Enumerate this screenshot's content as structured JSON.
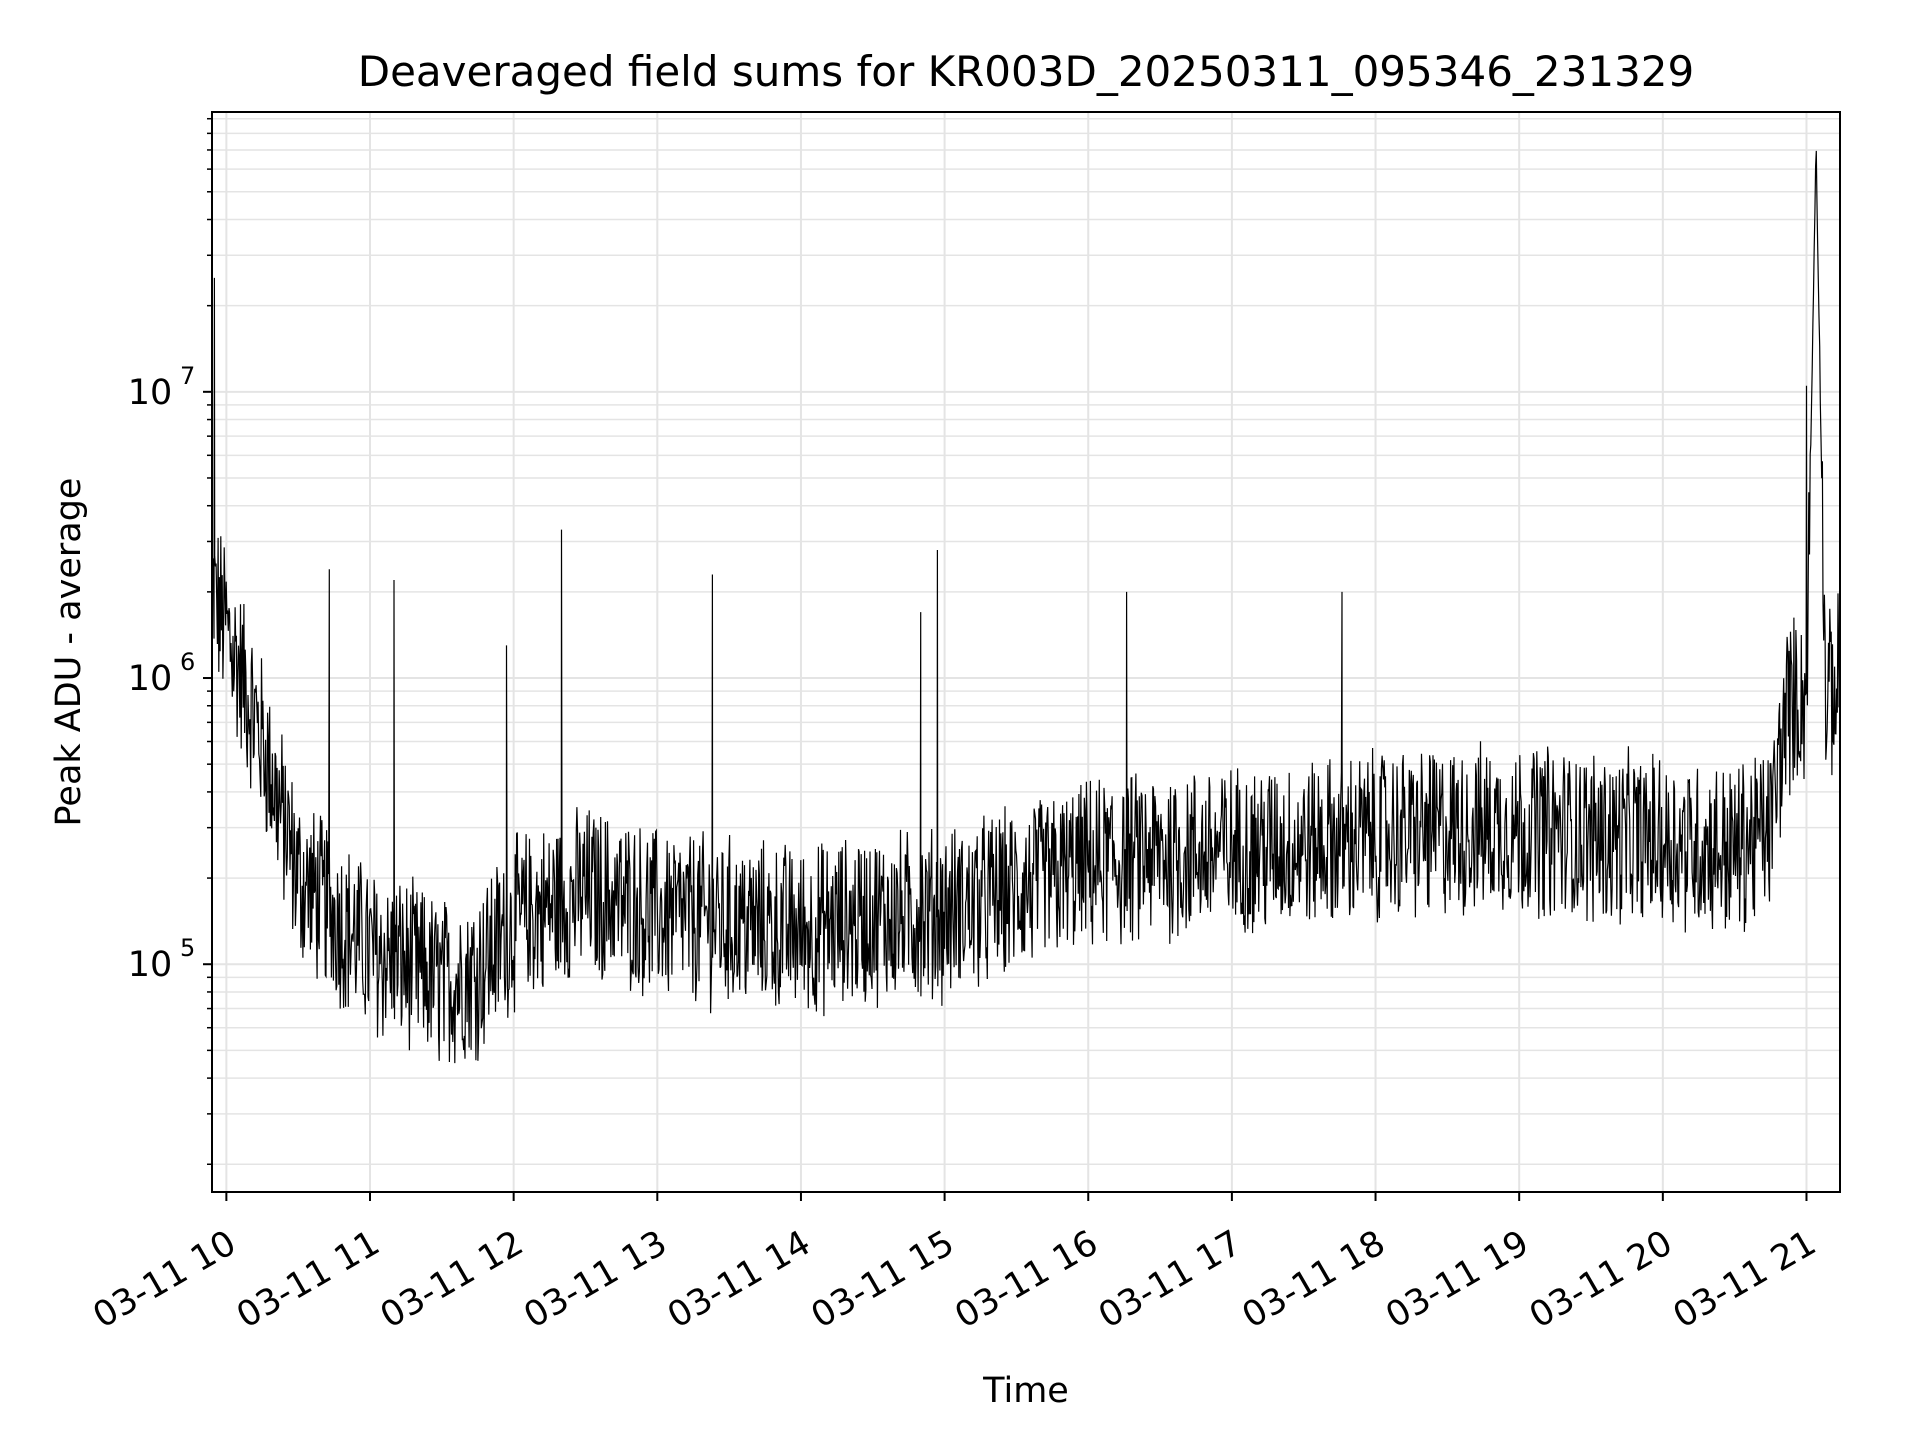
{
  "chart_data": {
    "type": "line",
    "title": "Deaveraged field sums for KR003D_20250311_095346_231329",
    "xlabel": "Time",
    "ylabel": "Peak ADU - average",
    "xscale": "time",
    "yscale": "log",
    "xlim": [
      "2025-03-11T09:54",
      "2025-03-11T21:14"
    ],
    "ylim": [
      16000,
      95000000
    ],
    "grid": true,
    "legend": "none",
    "line_color": "#000000",
    "x_ticks": [
      "03-11 10",
      "03-11 11",
      "03-11 12",
      "03-11 13",
      "03-11 14",
      "03-11 15",
      "03-11 16",
      "03-11 17",
      "03-11 18",
      "03-11 19",
      "03-11 20",
      "03-11 21"
    ],
    "y_ticks": [
      {
        "mantissa": "10",
        "exponent": "5",
        "value": 100000
      },
      {
        "mantissa": "10",
        "exponent": "6",
        "value": 1000000
      },
      {
        "mantissa": "10",
        "exponent": "7",
        "value": 10000000
      }
    ],
    "series": [
      {
        "x": [
          "2025-03-11T09:54",
          "2025-03-11T10:00",
          "2025-03-11T10:15",
          "2025-03-11T10:30",
          "2025-03-11T10:45",
          "2025-03-11T11:00",
          "2025-03-11T11:15",
          "2025-03-11T11:30",
          "2025-03-11T11:45",
          "2025-03-11T12:00",
          "2025-03-11T12:30",
          "2025-03-11T13:00",
          "2025-03-11T13:30",
          "2025-03-11T14:00",
          "2025-03-11T14:30",
          "2025-03-11T15:00",
          "2025-03-11T15:30",
          "2025-03-11T16:00",
          "2025-03-11T16:30",
          "2025-03-11T17:00",
          "2025-03-11T17:30",
          "2025-03-11T18:00",
          "2025-03-11T18:30",
          "2025-03-11T19:00",
          "2025-03-11T19:30",
          "2025-03-11T20:00",
          "2025-03-11T20:30",
          "2025-03-11T20:45",
          "2025-03-11T20:52",
          "2025-03-11T21:00",
          "2025-03-11T21:04",
          "2025-03-11T21:08",
          "2025-03-11T21:14"
        ],
        "values": [
          2000000,
          1500000,
          600000,
          200000,
          150000,
          110000,
          100000,
          85000,
          95000,
          140000,
          180000,
          150000,
          140000,
          130000,
          145000,
          150000,
          180000,
          220000,
          240000,
          250000,
          260000,
          280000,
          290000,
          300000,
          280000,
          270000,
          250000,
          300000,
          800000,
          850000,
          75000000,
          800000,
          1000000
        ],
        "spikes": [
          {
            "x": "2025-03-11T09:55",
            "value": 25000000
          },
          {
            "x": "2025-03-11T10:43",
            "value": 2400000
          },
          {
            "x": "2025-03-11T11:10",
            "value": 2200000
          },
          {
            "x": "2025-03-11T11:57",
            "value": 1300000
          },
          {
            "x": "2025-03-11T12:20",
            "value": 3300000
          },
          {
            "x": "2025-03-11T13:23",
            "value": 2300000
          },
          {
            "x": "2025-03-11T14:50",
            "value": 1700000
          },
          {
            "x": "2025-03-11T14:57",
            "value": 2800000
          },
          {
            "x": "2025-03-11T16:16",
            "value": 2000000
          },
          {
            "x": "2025-03-11T17:46",
            "value": 2000000
          },
          {
            "x": "2025-03-11T21:00",
            "value": 10500000
          }
        ]
      }
    ]
  }
}
